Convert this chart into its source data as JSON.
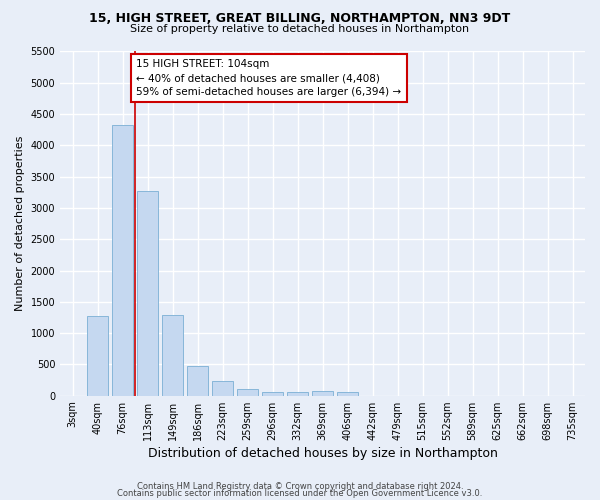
{
  "title1": "15, HIGH STREET, GREAT BILLING, NORTHAMPTON, NN3 9DT",
  "title2": "Size of property relative to detached houses in Northampton",
  "xlabel": "Distribution of detached houses by size in Northampton",
  "ylabel": "Number of detached properties",
  "categories": [
    "3sqm",
    "40sqm",
    "76sqm",
    "113sqm",
    "149sqm",
    "186sqm",
    "223sqm",
    "259sqm",
    "296sqm",
    "332sqm",
    "369sqm",
    "406sqm",
    "442sqm",
    "479sqm",
    "515sqm",
    "552sqm",
    "589sqm",
    "625sqm",
    "662sqm",
    "698sqm",
    "735sqm"
  ],
  "values": [
    0,
    1270,
    4330,
    3270,
    1290,
    480,
    230,
    100,
    65,
    55,
    70,
    55,
    0,
    0,
    0,
    0,
    0,
    0,
    0,
    0,
    0
  ],
  "bar_color": "#c5d8f0",
  "bar_edgecolor": "#7bafd4",
  "vline_x_index": 2.5,
  "vline_color": "#cc0000",
  "annotation_text": "15 HIGH STREET: 104sqm\n← 40% of detached houses are smaller (4,408)\n59% of semi-detached houses are larger (6,394) →",
  "annotation_box_facecolor": "#ffffff",
  "annotation_box_edgecolor": "#cc0000",
  "ylim": [
    0,
    5500
  ],
  "yticks": [
    0,
    500,
    1000,
    1500,
    2000,
    2500,
    3000,
    3500,
    4000,
    4500,
    5000,
    5500
  ],
  "footer1": "Contains HM Land Registry data © Crown copyright and database right 2024.",
  "footer2": "Contains public sector information licensed under the Open Government Licence v3.0.",
  "bg_color": "#e8eef8",
  "grid_color": "#ffffff",
  "title_fontsize": 9,
  "subtitle_fontsize": 8,
  "axis_label_fontsize": 8,
  "tick_fontsize": 7,
  "annotation_fontsize": 7.5,
  "footer_fontsize": 6
}
